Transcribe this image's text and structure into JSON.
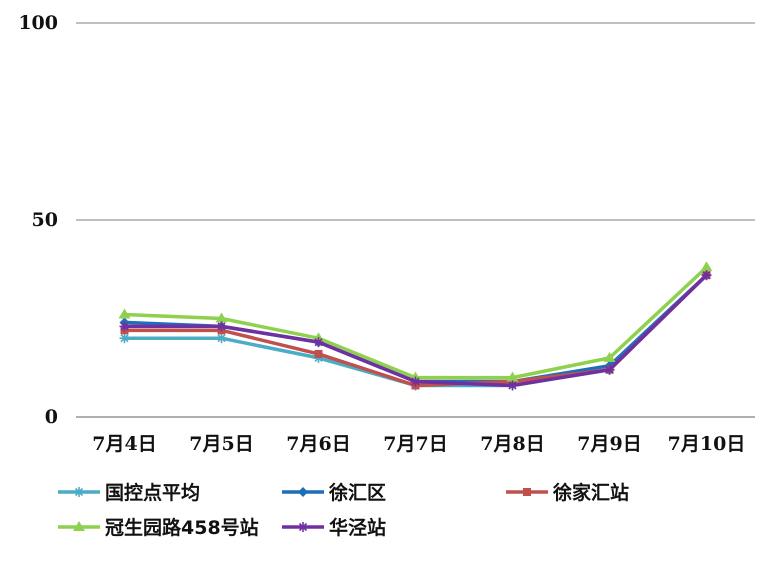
{
  "chart_data": {
    "type": "line",
    "title": "",
    "xlabel": "",
    "ylabel": "",
    "categories": [
      "7月4日",
      "7月5日",
      "7月6日",
      "7月7日",
      "7月8日",
      "7月9日",
      "7月10日"
    ],
    "ylim": [
      0,
      100
    ],
    "yticks": [
      0,
      50,
      100
    ],
    "grid": true,
    "legend_position": "bottom",
    "series": [
      {
        "name": "国控点平均",
        "color": "#4bacc6",
        "marker": "asterisk",
        "values": [
          20,
          20,
          15,
          8,
          8,
          12,
          36
        ]
      },
      {
        "name": "徐汇区",
        "color": "#1f6fb8",
        "marker": "diamond",
        "values": [
          24,
          23,
          19,
          9,
          9,
          13,
          36
        ]
      },
      {
        "name": "徐家汇站",
        "color": "#c0504d",
        "marker": "square",
        "values": [
          22,
          22,
          16,
          8,
          9,
          12,
          36
        ]
      },
      {
        "name": "冠生园路458号站",
        "color": "#8fd14f",
        "marker": "triangle",
        "values": [
          26,
          25,
          20,
          10,
          10,
          15,
          38
        ]
      },
      {
        "name": "华泾站",
        "color": "#7030a0",
        "marker": "asterisk",
        "values": [
          23,
          23,
          19,
          9,
          8,
          12,
          36
        ]
      }
    ]
  }
}
